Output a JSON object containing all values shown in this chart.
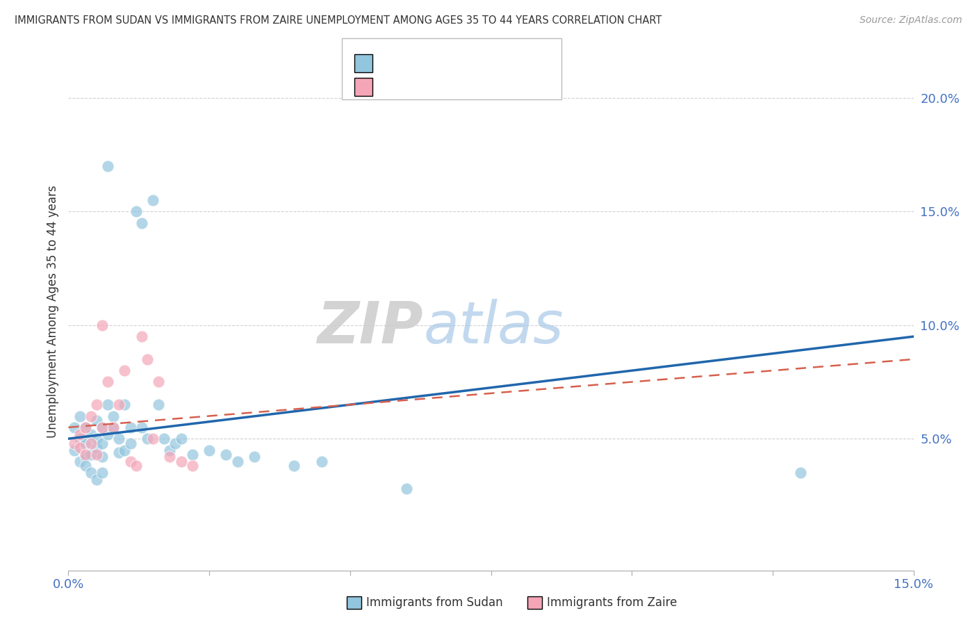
{
  "title": "IMMIGRANTS FROM SUDAN VS IMMIGRANTS FROM ZAIRE UNEMPLOYMENT AMONG AGES 35 TO 44 YEARS CORRELATION CHART",
  "source": "Source: ZipAtlas.com",
  "ylabel": "Unemployment Among Ages 35 to 44 years",
  "xlabel_label1": "Immigrants from Sudan",
  "xlabel_label2": "Immigrants from Zaire",
  "xlim": [
    0.0,
    0.15
  ],
  "ylim": [
    -0.008,
    0.22
  ],
  "yticks": [
    0.05,
    0.1,
    0.15,
    0.2
  ],
  "ytick_labels": [
    "5.0%",
    "10.0%",
    "15.0%",
    "20.0%"
  ],
  "xtick_positions": [
    0.0,
    0.025,
    0.05,
    0.075,
    0.1,
    0.125,
    0.15
  ],
  "color_sudan": "#92c5de",
  "color_zaire": "#f4a6b8",
  "color_line_sudan": "#2166ac",
  "color_line_zaire": "#d6604d",
  "sudan_x": [
    0.001,
    0.001,
    0.002,
    0.002,
    0.002,
    0.003,
    0.003,
    0.003,
    0.003,
    0.004,
    0.004,
    0.004,
    0.005,
    0.005,
    0.005,
    0.005,
    0.006,
    0.006,
    0.006,
    0.006,
    0.007,
    0.007,
    0.007,
    0.008,
    0.008,
    0.009,
    0.009,
    0.01,
    0.01,
    0.011,
    0.011,
    0.012,
    0.013,
    0.013,
    0.014,
    0.015,
    0.016,
    0.017,
    0.018,
    0.019,
    0.02,
    0.022,
    0.025,
    0.028,
    0.03,
    0.033,
    0.04,
    0.045,
    0.06,
    0.13
  ],
  "sudan_y": [
    0.045,
    0.055,
    0.05,
    0.04,
    0.06,
    0.055,
    0.042,
    0.048,
    0.038,
    0.052,
    0.035,
    0.043,
    0.058,
    0.046,
    0.032,
    0.05,
    0.055,
    0.048,
    0.042,
    0.035,
    0.17,
    0.065,
    0.052,
    0.06,
    0.055,
    0.05,
    0.044,
    0.065,
    0.045,
    0.055,
    0.048,
    0.15,
    0.145,
    0.055,
    0.05,
    0.155,
    0.065,
    0.05,
    0.045,
    0.048,
    0.05,
    0.043,
    0.045,
    0.043,
    0.04,
    0.042,
    0.038,
    0.04,
    0.028,
    0.035
  ],
  "zaire_x": [
    0.001,
    0.002,
    0.002,
    0.003,
    0.003,
    0.004,
    0.004,
    0.005,
    0.005,
    0.006,
    0.006,
    0.007,
    0.008,
    0.009,
    0.01,
    0.011,
    0.012,
    0.013,
    0.014,
    0.015,
    0.016,
    0.018,
    0.02,
    0.022
  ],
  "zaire_y": [
    0.048,
    0.052,
    0.046,
    0.055,
    0.043,
    0.06,
    0.048,
    0.065,
    0.043,
    0.1,
    0.055,
    0.075,
    0.055,
    0.065,
    0.08,
    0.04,
    0.038,
    0.095,
    0.085,
    0.05,
    0.075,
    0.042,
    0.04,
    0.038
  ],
  "bg_color": "#ffffff",
  "grid_color": "#d0d0d0"
}
